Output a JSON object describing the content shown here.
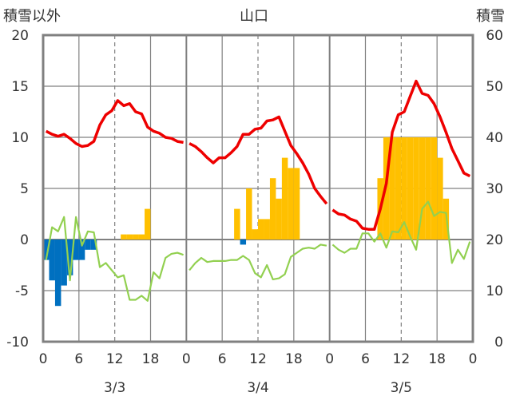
{
  "chart_data": {
    "type": "bar+line",
    "title": "山口",
    "ylabel_left": "積雪以外",
    "ylabel_right": "積雪",
    "y_left": {
      "min": -10,
      "max": 20,
      "ticks": [
        "-10",
        "-5",
        "0",
        "5",
        "10",
        "15",
        "20"
      ]
    },
    "y_right": {
      "min": 0,
      "max": 60,
      "ticks": [
        "0",
        "10",
        "20",
        "30",
        "40",
        "50",
        "60"
      ]
    },
    "x": {
      "hours_total": 72,
      "tick_labels": [
        "0",
        "6",
        "12",
        "18",
        "0",
        "6",
        "12",
        "18",
        "0",
        "6",
        "12",
        "18",
        "0"
      ],
      "day_labels": [
        "3/3",
        "3/4",
        "3/5"
      ]
    },
    "colors": {
      "temperature": "#ee0000",
      "snow_depth": "#ffc000",
      "precip_blue": "#0070c0",
      "green_line": "#92d050",
      "purple_line": "#7030a0",
      "grid": "#808080"
    },
    "series": [
      {
        "type": "line",
        "color": "#ee0000",
        "axis": "left",
        "segments": [
          [
            [
              0,
              10.6
            ],
            [
              1,
              10.3
            ],
            [
              2,
              10.1
            ],
            [
              3,
              10.3
            ],
            [
              4,
              9.9
            ],
            [
              5,
              9.4
            ],
            [
              6,
              9.1
            ],
            [
              7,
              9.2
            ],
            [
              8,
              9.6
            ],
            [
              9,
              11.2
            ],
            [
              10,
              12.2
            ],
            [
              11,
              12.6
            ],
            [
              12,
              13.6
            ],
            [
              13,
              13.1
            ],
            [
              14,
              13.3
            ],
            [
              15,
              12.5
            ],
            [
              16,
              12.3
            ],
            [
              17,
              11.0
            ],
            [
              18,
              10.6
            ],
            [
              19,
              10.4
            ],
            [
              20,
              10.0
            ],
            [
              21,
              9.9
            ],
            [
              22,
              9.6
            ],
            [
              23,
              9.5
            ]
          ],
          [
            [
              24,
              9.4
            ],
            [
              25,
              9.1
            ],
            [
              26,
              8.6
            ],
            [
              27,
              8.0
            ],
            [
              28,
              7.5
            ],
            [
              29,
              8.0
            ],
            [
              30,
              8.0
            ],
            [
              31,
              8.5
            ],
            [
              32,
              9.1
            ],
            [
              33,
              10.3
            ],
            [
              34,
              10.3
            ],
            [
              35,
              10.8
            ],
            [
              36,
              10.9
            ],
            [
              37,
              11.6
            ],
            [
              38,
              11.7
            ],
            [
              39,
              12.0
            ],
            [
              40,
              10.6
            ],
            [
              41,
              9.2
            ],
            [
              42,
              8.4
            ],
            [
              43,
              7.5
            ],
            [
              44,
              6.4
            ],
            [
              45,
              5.0
            ],
            [
              46,
              4.2
            ],
            [
              47,
              3.5
            ]
          ],
          [
            [
              48,
              2.9
            ],
            [
              49,
              2.5
            ],
            [
              50,
              2.4
            ],
            [
              51,
              2.0
            ],
            [
              52,
              1.8
            ],
            [
              53,
              1.1
            ],
            [
              54,
              1.0
            ],
            [
              55,
              1.0
            ],
            [
              56,
              3.0
            ],
            [
              57,
              5.5
            ],
            [
              58,
              10.5
            ],
            [
              59,
              12.2
            ],
            [
              60,
              12.5
            ],
            [
              61,
              14.0
            ],
            [
              62,
              15.5
            ],
            [
              63,
              14.3
            ],
            [
              64,
              14.1
            ],
            [
              65,
              13.3
            ],
            [
              66,
              12.0
            ],
            [
              67,
              10.5
            ],
            [
              68,
              8.9
            ],
            [
              69,
              7.7
            ],
            [
              70,
              6.5
            ],
            [
              71,
              6.2
            ]
          ]
        ]
      },
      {
        "type": "bar",
        "name": "積雪",
        "color": "#ffc000",
        "axis": "right",
        "values": [
          [
            13,
            21
          ],
          [
            14,
            21
          ],
          [
            15,
            21
          ],
          [
            16,
            21
          ],
          [
            17,
            26
          ],
          [
            32,
            26
          ],
          [
            34,
            30
          ],
          [
            35,
            22
          ],
          [
            36,
            24
          ],
          [
            37,
            24
          ],
          [
            38,
            32
          ],
          [
            39,
            28
          ],
          [
            40,
            36
          ],
          [
            41,
            34
          ],
          [
            42,
            34
          ],
          [
            56,
            32
          ],
          [
            57,
            40
          ],
          [
            58,
            40
          ],
          [
            59,
            40
          ],
          [
            60,
            40
          ],
          [
            61,
            40
          ],
          [
            62,
            40
          ],
          [
            63,
            40
          ],
          [
            64,
            40
          ],
          [
            65,
            40
          ],
          [
            66,
            36
          ],
          [
            67,
            28
          ]
        ]
      },
      {
        "type": "bar",
        "color": "#0070c0",
        "axis": "left",
        "values": [
          [
            0,
            -2.0
          ],
          [
            1,
            -4.0
          ],
          [
            2,
            -6.5
          ],
          [
            3,
            -4.5
          ],
          [
            4,
            -3.5
          ],
          [
            5,
            -2.0
          ],
          [
            6,
            -2.0
          ],
          [
            7,
            -1.0
          ],
          [
            8,
            -1.0
          ],
          [
            33,
            -0.5
          ]
        ]
      },
      {
        "type": "line",
        "color": "#92d050",
        "axis": "left",
        "segments": [
          [
            [
              0,
              -2.0
            ],
            [
              1,
              1.2
            ],
            [
              2,
              0.8
            ],
            [
              3,
              2.2
            ],
            [
              4,
              -4.0
            ],
            [
              5,
              2.2
            ],
            [
              6,
              -0.6
            ],
            [
              7,
              0.8
            ],
            [
              8,
              0.7
            ],
            [
              9,
              -2.7
            ],
            [
              10,
              -2.3
            ],
            [
              11,
              -3.0
            ],
            [
              12,
              -3.7
            ],
            [
              13,
              -3.5
            ],
            [
              14,
              -5.9
            ],
            [
              15,
              -5.9
            ],
            [
              16,
              -5.5
            ],
            [
              17,
              -6.0
            ],
            [
              18,
              -3.2
            ],
            [
              19,
              -3.8
            ],
            [
              20,
              -1.8
            ],
            [
              21,
              -1.4
            ],
            [
              22,
              -1.3
            ],
            [
              23,
              -1.5
            ]
          ],
          [
            [
              24,
              -3.0
            ],
            [
              25,
              -2.3
            ],
            [
              26,
              -1.8
            ],
            [
              27,
              -2.2
            ],
            [
              28,
              -2.1
            ],
            [
              29,
              -2.1
            ],
            [
              30,
              -2.1
            ],
            [
              31,
              -2.0
            ],
            [
              32,
              -2.0
            ],
            [
              33,
              -1.6
            ],
            [
              34,
              -2.0
            ],
            [
              35,
              -3.3
            ],
            [
              36,
              -3.7
            ],
            [
              37,
              -2.5
            ],
            [
              38,
              -3.9
            ],
            [
              39,
              -3.8
            ],
            [
              40,
              -3.4
            ],
            [
              41,
              -1.7
            ],
            [
              42,
              -1.3
            ],
            [
              43,
              -0.9
            ],
            [
              44,
              -0.8
            ],
            [
              45,
              -0.9
            ],
            [
              46,
              -0.5
            ],
            [
              47,
              -0.6
            ]
          ],
          [
            [
              48,
              -0.5
            ],
            [
              49,
              -1.0
            ],
            [
              50,
              -1.3
            ],
            [
              51,
              -0.9
            ],
            [
              52,
              -0.9
            ],
            [
              53,
              0.6
            ],
            [
              54,
              0.6
            ],
            [
              55,
              -0.2
            ],
            [
              56,
              0.6
            ],
            [
              57,
              -0.8
            ],
            [
              58,
              0.8
            ],
            [
              59,
              0.7
            ],
            [
              60,
              1.7
            ],
            [
              61,
              0.3
            ],
            [
              62,
              -1.0
            ],
            [
              63,
              3.0
            ],
            [
              64,
              3.7
            ],
            [
              65,
              2.3
            ],
            [
              66,
              2.7
            ],
            [
              67,
              2.6
            ],
            [
              68,
              -2.3
            ],
            [
              69,
              -1.0
            ],
            [
              70,
              -1.9
            ],
            [
              71,
              -0.2
            ]
          ]
        ]
      },
      {
        "type": "line",
        "color": "#7030a0",
        "axis": "left",
        "segments": [
          [
            [
              0,
              -10
            ],
            [
              71,
              -10
            ]
          ]
        ]
      }
    ]
  }
}
